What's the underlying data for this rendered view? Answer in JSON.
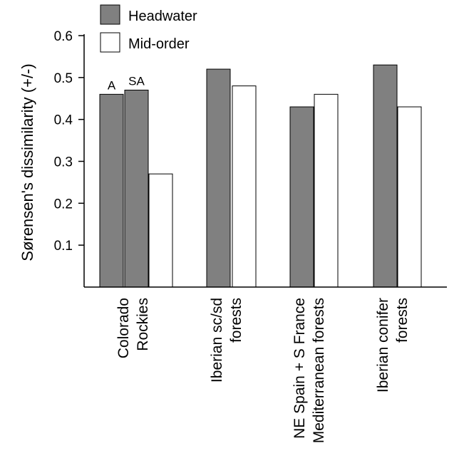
{
  "chart_data": {
    "type": "bar",
    "ylabel": "Sørensen's dissimilarity (+/-)",
    "ylim": [
      0,
      0.6
    ],
    "yticks": [
      "0.1",
      "0.2",
      "0.3",
      "0.4",
      "0.5",
      "0.6"
    ],
    "ytick_values": [
      0.1,
      0.2,
      0.3,
      0.4,
      0.5,
      0.6
    ],
    "categories": [
      [
        "Colorado",
        "Rockies"
      ],
      [
        "Iberian sc/sd",
        "forests"
      ],
      [
        "NE Spain + S France",
        "Mediterranean forests"
      ],
      [
        "Iberian conifer",
        "forests"
      ]
    ],
    "legend_position": "top-left",
    "colors": {
      "headwater": "#808080",
      "mid_order": "#ffffff",
      "stroke": "#000000"
    },
    "series": [
      {
        "name": "Headwater",
        "values": [
          0.46,
          0.52,
          0.43,
          0.53
        ]
      },
      {
        "name": "Mid-order",
        "values": [
          0.27,
          0.48,
          0.46,
          0.43
        ]
      }
    ],
    "extra_bar": {
      "series": "Headwater",
      "category_index": 0,
      "value": 0.47,
      "label": "SA"
    },
    "bar_annotations": [
      {
        "label": "A",
        "category_index": 0
      }
    ]
  }
}
